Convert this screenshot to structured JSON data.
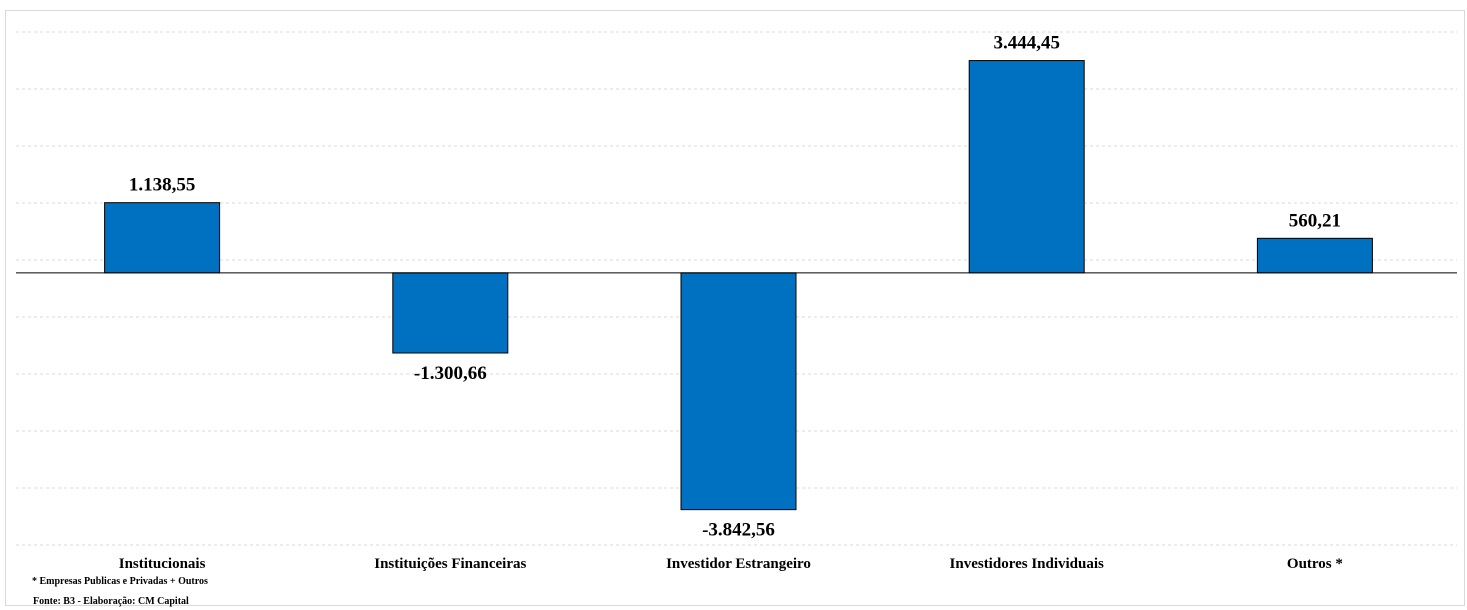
{
  "chart_data": {
    "type": "bar",
    "categories": [
      "Institucionais",
      "Instituições Financeiras",
      "Investidor Estrangeiro",
      "Investidores Individuais",
      "Outros *"
    ],
    "values": [
      1138.55,
      -1300.66,
      -3842.56,
      3444.45,
      560.21
    ],
    "value_labels": [
      "1.138,55",
      "-1.300,66",
      "-3.842,56",
      "3.444,45",
      "560,21"
    ],
    "ylim": [
      -4400,
      4200
    ],
    "grid": true,
    "legend": "none",
    "bar_color": "#0070C0",
    "bar_edge_color": "#000000",
    "gridline_color": "#d9d9d9"
  },
  "footnotes": {
    "note": "* Empresas Publicas e Privadas + Outros",
    "source": "Fonte: B3 - Elaboração: CM Capital"
  }
}
